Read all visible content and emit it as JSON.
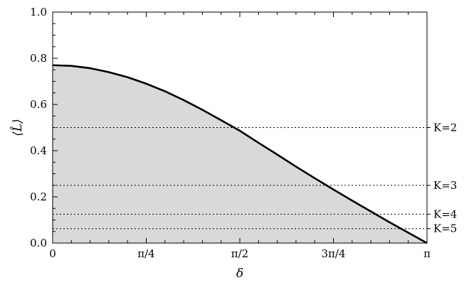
{
  "chart_data": {
    "type": "area",
    "xlabel": "δ",
    "ylabel": "⟨L̂⟩",
    "xlim": [
      0,
      3.14159265
    ],
    "ylim": [
      0,
      1.0
    ],
    "x_ticks": [
      {
        "value": 0,
        "label": "0"
      },
      {
        "value": 0.785398,
        "label": "π/4"
      },
      {
        "value": 1.570796,
        "label": "π/2"
      },
      {
        "value": 2.356194,
        "label": "3π/4"
      },
      {
        "value": 3.141593,
        "label": "π"
      }
    ],
    "y_ticks": [
      {
        "value": 0.0,
        "label": "0.0"
      },
      {
        "value": 0.2,
        "label": "0.2"
      },
      {
        "value": 0.4,
        "label": "0.4"
      },
      {
        "value": 0.6,
        "label": "0.6"
      },
      {
        "value": 0.8,
        "label": "0.8"
      },
      {
        "value": 1.0,
        "label": "1.0"
      }
    ],
    "grid": false,
    "series": [
      {
        "x": [
          0,
          0.1571,
          0.3142,
          0.4712,
          0.6283,
          0.7854,
          0.9425,
          1.0996,
          1.2566,
          1.4137,
          1.5708,
          1.7279,
          1.885,
          2.042,
          2.1991,
          2.3562,
          2.5133,
          2.6704,
          2.8274,
          2.9845,
          3.1416
        ],
        "values": [
          0.77,
          0.767,
          0.757,
          0.74,
          0.718,
          0.69,
          0.657,
          0.619,
          0.577,
          0.532,
          0.486,
          0.434,
          0.383,
          0.331,
          0.281,
          0.232,
          0.184,
          0.137,
          0.09,
          0.045,
          0.0
        ],
        "color": "#000000",
        "fill": "#d9d9d9"
      }
    ],
    "reference_lines": [
      {
        "y": 0.5,
        "label": "K=2"
      },
      {
        "y": 0.25,
        "label": "K=3"
      },
      {
        "y": 0.125,
        "label": "K=4"
      },
      {
        "y": 0.0625,
        "label": "K=5"
      }
    ]
  }
}
